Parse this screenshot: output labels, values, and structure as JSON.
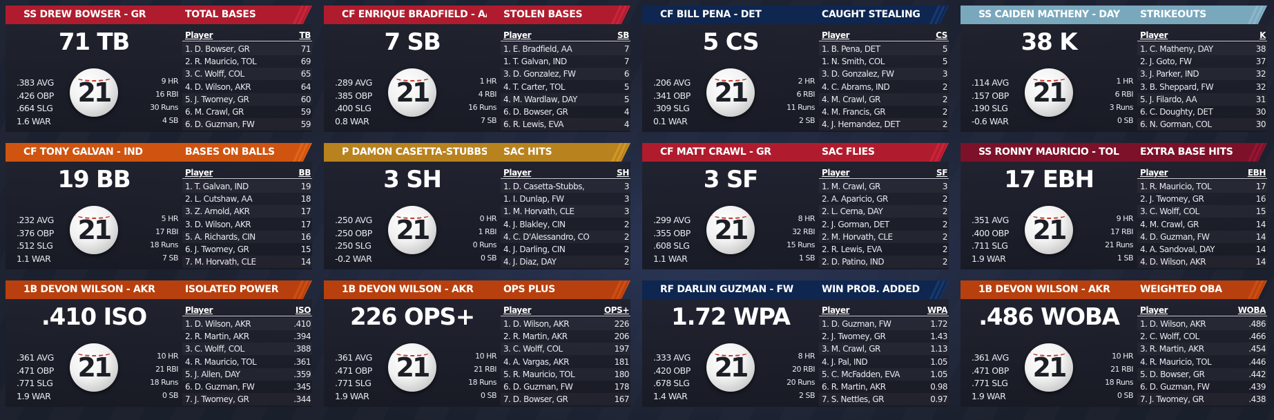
{
  "cards": [
    {
      "player_header": "SS DREW BOWSER - GR",
      "stat_header": "TOTAL BASES",
      "theme": "red",
      "big_stat": "71 TB",
      "rates": [
        ".383 AVG",
        ".426 OBP",
        ".664 SLG",
        "1.6 WAR"
      ],
      "counts": [
        "9 HR",
        "16 RBI",
        "30 Runs",
        "4 SB"
      ],
      "jersey": "21",
      "col_player": "Player",
      "col_stat": "TB",
      "leaders": [
        {
          "name": "1. D. Bowser, GR",
          "value": "71"
        },
        {
          "name": "2. R. Mauricio, TOL",
          "value": "69"
        },
        {
          "name": "3. C. Wolff, COL",
          "value": "65"
        },
        {
          "name": "4. D. Wilson, AKR",
          "value": "64"
        },
        {
          "name": "5. J. Twomey, GR",
          "value": "60"
        },
        {
          "name": "6. M. Crawl, GR",
          "value": "59"
        },
        {
          "name": "6. D. Guzman, FW",
          "value": "59"
        }
      ]
    },
    {
      "player_header": "CF ENRIQUE BRADFIELD - AA",
      "stat_header": "STOLEN BASES",
      "theme": "red",
      "big_stat": "7 SB",
      "rates": [
        ".289 AVG",
        ".385 OBP",
        ".400 SLG",
        "0.8 WAR"
      ],
      "counts": [
        "1 HR",
        "4 RBI",
        "16 Runs",
        "7 SB"
      ],
      "jersey": "21",
      "col_player": "Player",
      "col_stat": "SB",
      "leaders": [
        {
          "name": "1. E. Bradfield, AA",
          "value": "7"
        },
        {
          "name": "1. T. Galvan, IND",
          "value": "7"
        },
        {
          "name": "3. D. Gonzalez, FW",
          "value": "6"
        },
        {
          "name": "4. T. Carter, TOL",
          "value": "5"
        },
        {
          "name": "4. M. Wardlaw, DAY",
          "value": "5"
        },
        {
          "name": "6. D. Bowser, GR",
          "value": "4"
        },
        {
          "name": "6. R. Lewis, EVA",
          "value": "4"
        }
      ]
    },
    {
      "player_header": "CF BILL PENA - DET",
      "stat_header": "CAUGHT STEALING",
      "theme": "navy",
      "big_stat": "5 CS",
      "rates": [
        ".206 AVG",
        ".341 OBP",
        ".309 SLG",
        "0.1 WAR"
      ],
      "counts": [
        "2 HR",
        "6 RBI",
        "11 Runs",
        "2 SB"
      ],
      "jersey": "21",
      "col_player": "Player",
      "col_stat": "CS",
      "leaders": [
        {
          "name": "1. B. Pena, DET",
          "value": "5"
        },
        {
          "name": "1. N. Smith, COL",
          "value": "5"
        },
        {
          "name": "3. D. Gonzalez, FW",
          "value": "3"
        },
        {
          "name": "4. C. Abrams, IND",
          "value": "2"
        },
        {
          "name": "4. M. Crawl, GR",
          "value": "2"
        },
        {
          "name": "4. M. Francis, GR",
          "value": "2"
        },
        {
          "name": "4. J. Hernandez, DET",
          "value": "2"
        }
      ]
    },
    {
      "player_header": "SS CAIDEN MATHENY - DAY",
      "stat_header": "STRIKEOUTS",
      "theme": "lightblue",
      "big_stat": "38 K",
      "rates": [
        ".114 AVG",
        ".157 OBP",
        ".190 SLG",
        "-0.6 WAR"
      ],
      "counts": [
        "1 HR",
        "6 RBI",
        "3 Runs",
        "0 SB"
      ],
      "jersey": "21",
      "col_player": "Player",
      "col_stat": "K",
      "leaders": [
        {
          "name": "1. C. Matheny, DAY",
          "value": "38"
        },
        {
          "name": "2. J. Goto, FW",
          "value": "37"
        },
        {
          "name": "3. J. Parker, IND",
          "value": "32"
        },
        {
          "name": "3. B. Sheppard, FW",
          "value": "32"
        },
        {
          "name": "5. J. Filardo, AA",
          "value": "31"
        },
        {
          "name": "6. C. Doughty, DET",
          "value": "30"
        },
        {
          "name": "6. N. Gorman, COL",
          "value": "30"
        }
      ]
    },
    {
      "player_header": "CF TONY GALVAN - IND",
      "stat_header": "BASES ON BALLS",
      "theme": "orange",
      "big_stat": "19 BB",
      "rates": [
        ".232 AVG",
        ".376 OBP",
        ".512 SLG",
        "1.1 WAR"
      ],
      "counts": [
        "5 HR",
        "17 RBI",
        "18 Runs",
        "7 SB"
      ],
      "jersey": "21",
      "col_player": "Player",
      "col_stat": "BB",
      "leaders": [
        {
          "name": "1. T. Galvan, IND",
          "value": "19"
        },
        {
          "name": "2. L. Cutshaw, AA",
          "value": "18"
        },
        {
          "name": "3. Z. Arnold, AKR",
          "value": "17"
        },
        {
          "name": "3. D. Wilson, AKR",
          "value": "17"
        },
        {
          "name": "5. A. Richards, CIN",
          "value": "16"
        },
        {
          "name": "6. J. Twomey, GR",
          "value": "15"
        },
        {
          "name": "7. M. Horvath, CLE",
          "value": "14"
        }
      ]
    },
    {
      "player_header": "P DAMON CASETTA-STUBBS - CC",
      "stat_header": "SAC HITS",
      "theme": "gold",
      "big_stat": "3 SH",
      "rates": [
        ".250 AVG",
        ".250 OBP",
        ".250 SLG",
        "-0.2 WAR"
      ],
      "counts": [
        "0 HR",
        "1 RBI",
        "0 Runs",
        "0 SB"
      ],
      "jersey": "21",
      "col_player": "Player",
      "col_stat": "SH",
      "leaders": [
        {
          "name": "1. D. Casetta-Stubbs,",
          "value": "3"
        },
        {
          "name": "1. I. Dunlap, FW",
          "value": "3"
        },
        {
          "name": "1. M. Horvath, CLE",
          "value": "3"
        },
        {
          "name": "4. J. Blakley, CIN",
          "value": "2"
        },
        {
          "name": "4. C. D'Alessandro, CO",
          "value": "2"
        },
        {
          "name": "4. J. Darling, CIN",
          "value": "2"
        },
        {
          "name": "4. J. Diaz, DAY",
          "value": "2"
        }
      ]
    },
    {
      "player_header": "CF MATT CRAWL - GR",
      "stat_header": "SAC FLIES",
      "theme": "red",
      "big_stat": "3 SF",
      "rates": [
        ".299 AVG",
        ".355 OBP",
        ".608 SLG",
        "1.1 WAR"
      ],
      "counts": [
        "8 HR",
        "32 RBI",
        "15 Runs",
        "1 SB"
      ],
      "jersey": "21",
      "col_player": "Player",
      "col_stat": "SF",
      "leaders": [
        {
          "name": "1. M. Crawl, GR",
          "value": "3"
        },
        {
          "name": "2. A. Aparicio, GR",
          "value": "2"
        },
        {
          "name": "2. L. Cerna, DAY",
          "value": "2"
        },
        {
          "name": "2. J. Gorman, DET",
          "value": "2"
        },
        {
          "name": "2. M. Horvath, CLE",
          "value": "2"
        },
        {
          "name": "2. R. Lewis, EVA",
          "value": "2"
        },
        {
          "name": "2. D. Patino, IND",
          "value": "2"
        }
      ]
    },
    {
      "player_header": "SS RONNY MAURICIO - TOL",
      "stat_header": "EXTRA BASE HITS",
      "theme": "maroon",
      "big_stat": "17 EBH",
      "rates": [
        ".351 AVG",
        ".400 OBP",
        ".711 SLG",
        "1.9 WAR"
      ],
      "counts": [
        "9 HR",
        "17 RBI",
        "21 Runs",
        "1 SB"
      ],
      "jersey": "21",
      "col_player": "Player",
      "col_stat": "EBH",
      "leaders": [
        {
          "name": "1. R. Mauricio, TOL",
          "value": "17"
        },
        {
          "name": "2. J. Twomey, GR",
          "value": "16"
        },
        {
          "name": "3. C. Wolff, COL",
          "value": "15"
        },
        {
          "name": "4. M. Crawl, GR",
          "value": "14"
        },
        {
          "name": "4. D. Guzman, FW",
          "value": "14"
        },
        {
          "name": "4. A. Sandoval, DAY",
          "value": "14"
        },
        {
          "name": "4. D. Wilson, AKR",
          "value": "14"
        }
      ]
    },
    {
      "player_header": "1B DEVON WILSON - AKR",
      "stat_header": "ISOLATED POWER",
      "theme": "rust",
      "big_stat": ".410 ISO",
      "rates": [
        ".361 AVG",
        ".471 OBP",
        ".771 SLG",
        "1.9 WAR"
      ],
      "counts": [
        "10 HR",
        "21 RBI",
        "18 Runs",
        "0 SB"
      ],
      "jersey": "21",
      "col_player": "Player",
      "col_stat": "ISO",
      "leaders": [
        {
          "name": "1. D. Wilson, AKR",
          "value": ".410"
        },
        {
          "name": "2. R. Martin, AKR",
          "value": ".394"
        },
        {
          "name": "3. C. Wolff, COL",
          "value": ".388"
        },
        {
          "name": "4. R. Mauricio, TOL",
          "value": ".361"
        },
        {
          "name": "5. J. Allen, DAY",
          "value": ".359"
        },
        {
          "name": "6. D. Guzman, FW",
          "value": ".345"
        },
        {
          "name": "7. J. Twomey, GR",
          "value": ".344"
        }
      ]
    },
    {
      "player_header": "1B DEVON WILSON - AKR",
      "stat_header": "OPS PLUS",
      "theme": "rust",
      "big_stat": "226 OPS+",
      "rates": [
        ".361 AVG",
        ".471 OBP",
        ".771 SLG",
        "1.9 WAR"
      ],
      "counts": [
        "10 HR",
        "21 RBI",
        "18 Runs",
        "0 SB"
      ],
      "jersey": "21",
      "col_player": "Player",
      "col_stat": "OPS+",
      "leaders": [
        {
          "name": "1. D. Wilson, AKR",
          "value": "226"
        },
        {
          "name": "2. R. Martin, AKR",
          "value": "206"
        },
        {
          "name": "3. C. Wolff, COL",
          "value": "197"
        },
        {
          "name": "4. A. Vargas, AKR",
          "value": "181"
        },
        {
          "name": "5. R. Mauricio, TOL",
          "value": "180"
        },
        {
          "name": "6. D. Guzman, FW",
          "value": "178"
        },
        {
          "name": "7. D. Bowser, GR",
          "value": "167"
        }
      ]
    },
    {
      "player_header": "RF DARLIN GUZMAN - FW",
      "stat_header": "WIN PROB. ADDED",
      "theme": "navy",
      "big_stat": "1.72 WPA",
      "rates": [
        ".333 AVG",
        ".420 OBP",
        ".678 SLG",
        "1.4 WAR"
      ],
      "counts": [
        "8 HR",
        "20 RBI",
        "20 Runs",
        "2 SB"
      ],
      "jersey": "21",
      "col_player": "Player",
      "col_stat": "WPA",
      "leaders": [
        {
          "name": "1. D. Guzman, FW",
          "value": "1.72"
        },
        {
          "name": "2. J. Twomey, GR",
          "value": "1.43"
        },
        {
          "name": "3. M. Crawl, GR",
          "value": "1.13"
        },
        {
          "name": "4. J. Pal, IND",
          "value": "1.05"
        },
        {
          "name": "5. C. McFadden, EVA",
          "value": "1.05"
        },
        {
          "name": "6. R. Martin, AKR",
          "value": "0.98"
        },
        {
          "name": "7. S. Nettles, GR",
          "value": "0.97"
        }
      ]
    },
    {
      "player_header": "1B DEVON WILSON - AKR",
      "stat_header": "WEIGHTED OBA",
      "theme": "rust",
      "big_stat": ".486 WOBA",
      "rates": [
        ".361 AVG",
        ".471 OBP",
        ".771 SLG",
        "1.9 WAR"
      ],
      "counts": [
        "10 HR",
        "21 RBI",
        "18 Runs",
        "0 SB"
      ],
      "jersey": "21",
      "col_player": "Player",
      "col_stat": "WOBA",
      "leaders": [
        {
          "name": "1. D. Wilson, AKR",
          "value": ".486"
        },
        {
          "name": "2. C. Wolff, COL",
          "value": ".466"
        },
        {
          "name": "3. R. Martin, AKR",
          "value": ".454"
        },
        {
          "name": "4. R. Mauricio, TOL",
          "value": ".446"
        },
        {
          "name": "5. D. Bowser, GR",
          "value": ".442"
        },
        {
          "name": "6. D. Guzman, FW",
          "value": ".439"
        },
        {
          "name": "7. J. Twomey, GR",
          "value": ".438"
        }
      ]
    }
  ],
  "themes": {
    "red": {
      "bg": "#b01c2e",
      "stripe": "#c8243a"
    },
    "navy": {
      "bg": "#0e2650",
      "stripe": "#16386e"
    },
    "lightblue": {
      "bg": "#79a8bd",
      "stripe": "#8bb6c9"
    },
    "orange": {
      "bg": "#cf5410",
      "stripe": "#e0651a"
    },
    "gold": {
      "bg": "#b8821e",
      "stripe": "#cf9628"
    },
    "maroon": {
      "bg": "#7c1129",
      "stripe": "#951634"
    },
    "rust": {
      "bg": "#b8400e",
      "stripe": "#cc4e14"
    }
  }
}
